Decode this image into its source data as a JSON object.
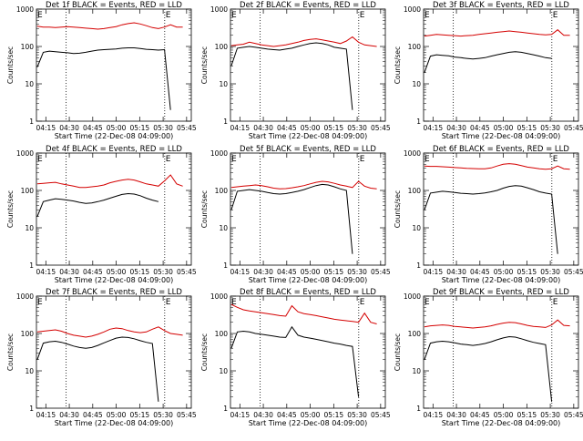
{
  "chart_data": [
    {
      "title": "Det 1f BLACK = Events, RED = LLD",
      "type": "line",
      "xlabel": "Start Time (22-Dec-08 04:09:00)",
      "ylabel": "Counts/sec",
      "x_ticks": [
        "04:15",
        "04:30",
        "04:45",
        "05:00",
        "05:15",
        "05:30",
        "05:45"
      ],
      "y_ticks": [
        "1",
        "10",
        "100",
        "1000"
      ],
      "yscale": "log",
      "ylim": [
        1,
        1000
      ],
      "xlim": [
        "04:09",
        "05:48"
      ],
      "markers": [
        {
          "label": "E",
          "time": "04:09"
        },
        {
          "label": "E",
          "time": "05:31"
        }
      ],
      "dotted_lines": [
        "04:28",
        "05:31"
      ],
      "series": [
        {
          "color": "#d40000",
          "values": [
            350,
            330,
            330,
            320,
            330,
            340,
            330,
            320,
            310,
            300,
            290,
            300,
            320,
            340,
            380,
            410,
            430,
            400,
            360,
            320,
            300,
            330,
            380,
            330,
            330
          ]
        },
        {
          "color": "#000000",
          "values": [
            28,
            70,
            75,
            72,
            70,
            68,
            65,
            66,
            70,
            75,
            80,
            82,
            84,
            86,
            90,
            92,
            92,
            88,
            84,
            82,
            80,
            82,
            2,
            0,
            0
          ]
        }
      ]
    },
    {
      "title": "Det 2f BLACK = Events, RED = LLD",
      "type": "line",
      "xlabel": "Start Time (22-Dec-08 04:09:00)",
      "ylabel": "Counts/sec",
      "x_ticks": [
        "04:15",
        "04:30",
        "04:45",
        "05:00",
        "05:15",
        "05:30",
        "05:45"
      ],
      "y_ticks": [
        "1",
        "10",
        "100",
        "1000"
      ],
      "yscale": "log",
      "ylim": [
        1,
        1000
      ],
      "xlim": [
        "04:09",
        "05:48"
      ],
      "markers": [
        {
          "label": "E",
          "time": "04:09"
        },
        {
          "label": "E",
          "time": "05:31"
        }
      ],
      "dotted_lines": [
        "04:28",
        "05:31"
      ],
      "series": [
        {
          "color": "#d40000",
          "values": [
            105,
            110,
            115,
            130,
            120,
            110,
            105,
            100,
            105,
            110,
            120,
            130,
            145,
            155,
            160,
            150,
            140,
            130,
            120,
            140,
            180,
            130,
            110,
            105,
            100
          ]
        },
        {
          "color": "#000000",
          "values": [
            30,
            90,
            95,
            100,
            95,
            90,
            85,
            82,
            80,
            85,
            90,
            100,
            110,
            120,
            125,
            120,
            110,
            95,
            90,
            85,
            2,
            0,
            0,
            0,
            0
          ]
        }
      ]
    },
    {
      "title": "Det 3f BLACK = Events, RED = LLD",
      "type": "line",
      "xlabel": "Start Time (22-Dec-08 04:09:00)",
      "ylabel": "Counts/sec",
      "x_ticks": [
        "04:15",
        "04:30",
        "04:45",
        "05:00",
        "05:15",
        "05:30",
        "05:45"
      ],
      "y_ticks": [
        "1",
        "10",
        "100",
        "1000"
      ],
      "yscale": "log",
      "ylim": [
        1,
        1000
      ],
      "xlim": [
        "04:09",
        "05:48"
      ],
      "markers": [
        {
          "label": "E",
          "time": "04:09"
        },
        {
          "label": "E",
          "time": "05:31"
        }
      ],
      "dotted_lines": [
        "04:28",
        "05:31"
      ],
      "series": [
        {
          "color": "#d40000",
          "values": [
            190,
            200,
            210,
            205,
            200,
            195,
            190,
            195,
            200,
            210,
            220,
            230,
            240,
            250,
            260,
            250,
            240,
            230,
            220,
            210,
            205,
            210,
            280,
            200,
            200
          ]
        },
        {
          "color": "#000000",
          "values": [
            20,
            55,
            60,
            58,
            56,
            52,
            50,
            48,
            46,
            48,
            50,
            55,
            60,
            65,
            70,
            72,
            70,
            65,
            60,
            55,
            50,
            48,
            null,
            null,
            null
          ]
        }
      ]
    },
    {
      "title": "Det 4f BLACK = Events, RED = LLD",
      "type": "line",
      "xlabel": "Start Time (22-Dec-08 04:09:00)",
      "ylabel": "Counts/sec",
      "x_ticks": [
        "04:15",
        "04:30",
        "04:45",
        "05:00",
        "05:15",
        "05:30",
        "05:45"
      ],
      "y_ticks": [
        "1",
        "10",
        "100",
        "1000"
      ],
      "yscale": "log",
      "ylim": [
        1,
        1000
      ],
      "xlim": [
        "04:09",
        "05:48"
      ],
      "markers": [
        {
          "label": "E",
          "time": "04:09"
        },
        {
          "label": "E",
          "time": "05:31"
        }
      ],
      "dotted_lines": [
        "04:28",
        "05:31"
      ],
      "series": [
        {
          "color": "#d40000",
          "values": [
            150,
            155,
            160,
            165,
            150,
            140,
            130,
            120,
            120,
            125,
            130,
            140,
            160,
            175,
            190,
            200,
            190,
            170,
            150,
            140,
            130,
            180,
            260,
            150,
            130
          ]
        },
        {
          "color": "#000000",
          "values": [
            20,
            50,
            55,
            60,
            58,
            55,
            52,
            48,
            45,
            46,
            50,
            55,
            62,
            70,
            78,
            82,
            80,
            72,
            62,
            55,
            50,
            null,
            null,
            null,
            null
          ]
        }
      ]
    },
    {
      "title": "Det 5f BLACK = Events, RED = LLD",
      "type": "line",
      "xlabel": "Start Time (22-Dec-08 04:09:00)",
      "ylabel": "Counts/sec",
      "x_ticks": [
        "04:15",
        "04:30",
        "04:45",
        "05:00",
        "05:15",
        "05:30",
        "05:45"
      ],
      "y_ticks": [
        "1",
        "10",
        "100",
        "1000"
      ],
      "yscale": "log",
      "ylim": [
        1,
        1000
      ],
      "xlim": [
        "04:09",
        "05:48"
      ],
      "markers": [
        {
          "label": "E",
          "time": "04:09"
        },
        {
          "label": "E",
          "time": "05:31"
        }
      ],
      "dotted_lines": [
        "04:28",
        "05:31"
      ],
      "series": [
        {
          "color": "#d40000",
          "values": [
            120,
            125,
            130,
            135,
            140,
            135,
            125,
            115,
            110,
            112,
            118,
            125,
            135,
            150,
            165,
            175,
            170,
            155,
            140,
            130,
            120,
            175,
            130,
            115,
            110
          ]
        },
        {
          "color": "#000000",
          "values": [
            30,
            95,
            100,
            105,
            100,
            95,
            88,
            82,
            80,
            82,
            88,
            95,
            105,
            120,
            135,
            145,
            140,
            125,
            110,
            100,
            2,
            null,
            null,
            null,
            null
          ]
        }
      ]
    },
    {
      "title": "Det 6f BLACK = Events, RED = LLD",
      "type": "line",
      "xlabel": "Start Time (22-Dec-08 04:09:00)",
      "ylabel": "Counts/sec",
      "x_ticks": [
        "04:15",
        "04:30",
        "04:45",
        "05:00",
        "05:15",
        "05:30",
        "05:45"
      ],
      "y_ticks": [
        "1",
        "10",
        "100",
        "1000"
      ],
      "yscale": "log",
      "ylim": [
        1,
        1000
      ],
      "xlim": [
        "04:09",
        "05:48"
      ],
      "markers": [
        {
          "label": "E",
          "time": "04:09"
        },
        {
          "label": "E",
          "time": "05:31"
        }
      ],
      "dotted_lines": [
        "04:28",
        "05:31"
      ],
      "series": [
        {
          "color": "#d40000",
          "values": [
            450,
            440,
            440,
            430,
            420,
            410,
            400,
            390,
            385,
            380,
            380,
            400,
            450,
            500,
            520,
            500,
            460,
            420,
            400,
            380,
            370,
            380,
            450,
            380,
            370
          ]
        },
        {
          "color": "#000000",
          "values": [
            30,
            85,
            90,
            95,
            92,
            88,
            84,
            82,
            80,
            82,
            86,
            92,
            100,
            115,
            128,
            135,
            130,
            118,
            105,
            92,
            85,
            80,
            2,
            null,
            null
          ]
        }
      ]
    },
    {
      "title": "Det 7f BLACK = Events, RED = LLD",
      "type": "line",
      "xlabel": "Start Time (22-Dec-08 04:09:00)",
      "ylabel": "Counts/sec",
      "x_ticks": [
        "04:15",
        "04:30",
        "04:45",
        "05:00",
        "05:15",
        "05:30",
        "05:45"
      ],
      "y_ticks": [
        "1",
        "10",
        "100",
        "1000"
      ],
      "yscale": "log",
      "ylim": [
        1,
        1000
      ],
      "xlim": [
        "04:09",
        "05:48"
      ],
      "markers": [
        {
          "label": "E",
          "time": "04:09"
        },
        {
          "label": "E",
          "time": "05:31"
        }
      ],
      "dotted_lines": [
        "04:28",
        "05:31"
      ],
      "series": [
        {
          "color": "#d40000",
          "values": [
            110,
            115,
            120,
            125,
            115,
            100,
            90,
            85,
            80,
            85,
            95,
            110,
            130,
            140,
            135,
            120,
            110,
            105,
            110,
            130,
            150,
            120,
            100,
            95,
            90
          ]
        },
        {
          "color": "#000000",
          "values": [
            20,
            55,
            60,
            62,
            58,
            52,
            46,
            42,
            40,
            42,
            48,
            56,
            65,
            75,
            80,
            78,
            72,
            64,
            58,
            54,
            1.5,
            null,
            null,
            null,
            null
          ]
        }
      ]
    },
    {
      "title": "Det 8f BLACK = Events, RED = LLD",
      "type": "line",
      "xlabel": "Start Time (22-Dec-08 04:09:00)",
      "ylabel": "Counts/sec",
      "x_ticks": [
        "04:15",
        "04:30",
        "04:45",
        "05:00",
        "05:15",
        "05:30",
        "05:45"
      ],
      "y_ticks": [
        "1",
        "10",
        "100",
        "1000"
      ],
      "yscale": "log",
      "ylim": [
        1,
        1000
      ],
      "xlim": [
        "04:09",
        "05:48"
      ],
      "markers": [
        {
          "label": "E",
          "time": "04:09"
        },
        {
          "label": "E",
          "time": "05:31"
        }
      ],
      "dotted_lines": [
        "04:28",
        "05:31"
      ],
      "series": [
        {
          "color": "#d40000",
          "values": [
            600,
            500,
            430,
            400,
            380,
            360,
            340,
            320,
            300,
            290,
            550,
            380,
            340,
            320,
            300,
            280,
            260,
            240,
            230,
            220,
            210,
            200,
            350,
            200,
            180
          ]
        },
        {
          "color": "#000000",
          "values": [
            40,
            110,
            115,
            110,
            100,
            95,
            90,
            85,
            80,
            78,
            150,
            90,
            80,
            75,
            70,
            65,
            60,
            55,
            52,
            48,
            45,
            2,
            null,
            null,
            null
          ]
        }
      ]
    },
    {
      "title": "Det 9f BLACK = Events, RED = LLD",
      "type": "line",
      "xlabel": "Start Time (22-Dec-08 04:09:00)",
      "ylabel": "Counts/sec",
      "x_ticks": [
        "04:15",
        "04:30",
        "04:45",
        "05:00",
        "05:15",
        "05:30",
        "05:45"
      ],
      "y_ticks": [
        "1",
        "10",
        "100",
        "1000"
      ],
      "yscale": "log",
      "ylim": [
        1,
        1000
      ],
      "xlim": [
        "04:09",
        "05:48"
      ],
      "markers": [
        {
          "label": "E",
          "time": "04:09"
        },
        {
          "label": "E",
          "time": "05:31"
        }
      ],
      "dotted_lines": [
        "04:28",
        "05:31"
      ],
      "series": [
        {
          "color": "#d40000",
          "values": [
            150,
            160,
            165,
            170,
            165,
            155,
            150,
            145,
            140,
            145,
            150,
            160,
            175,
            190,
            200,
            195,
            180,
            165,
            155,
            150,
            145,
            170,
            230,
            165,
            160
          ]
        },
        {
          "color": "#000000",
          "values": [
            20,
            55,
            60,
            62,
            60,
            56,
            52,
            50,
            48,
            50,
            54,
            60,
            68,
            76,
            82,
            80,
            72,
            64,
            58,
            54,
            50,
            1.5,
            null,
            null,
            null
          ]
        }
      ]
    }
  ]
}
